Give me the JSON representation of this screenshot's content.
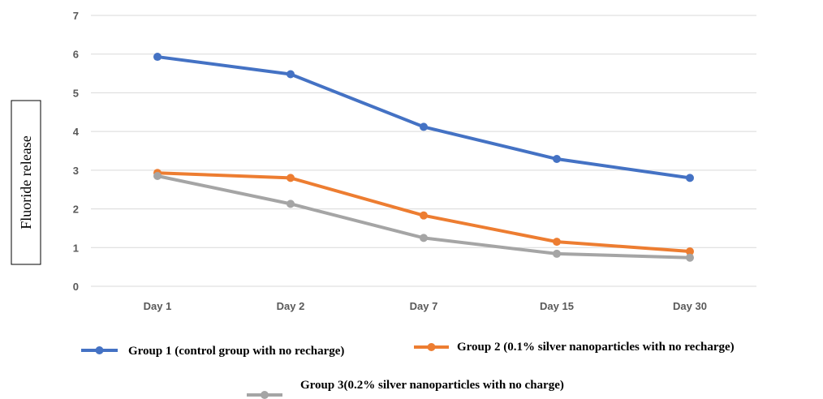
{
  "chart_data": {
    "type": "line",
    "title": "",
    "xlabel": "",
    "ylabel": "Fluoride release",
    "categories": [
      "Day 1",
      "Day 2",
      "Day 7",
      "Day 15",
      "Day 30"
    ],
    "ylim": [
      0,
      7
    ],
    "yticks": [
      0,
      1,
      2,
      3,
      4,
      5,
      6,
      7
    ],
    "grid": true,
    "legend_position": "bottom",
    "series": [
      {
        "name": "Group 1 (control group with no recharge)",
        "color": "#4472c4",
        "values": [
          5.93,
          5.48,
          4.12,
          3.29,
          2.8
        ]
      },
      {
        "name": "Group 2 (0.1% silver nanoparticles with no recharge)",
        "color": "#ed7d31",
        "values": [
          2.93,
          2.8,
          1.83,
          1.15,
          0.9
        ]
      },
      {
        "name": "Group 3(0.2% silver nanoparticles with no charge)",
        "color": "#a5a5a5",
        "values": [
          2.85,
          2.13,
          1.25,
          0.84,
          0.74
        ]
      }
    ]
  }
}
